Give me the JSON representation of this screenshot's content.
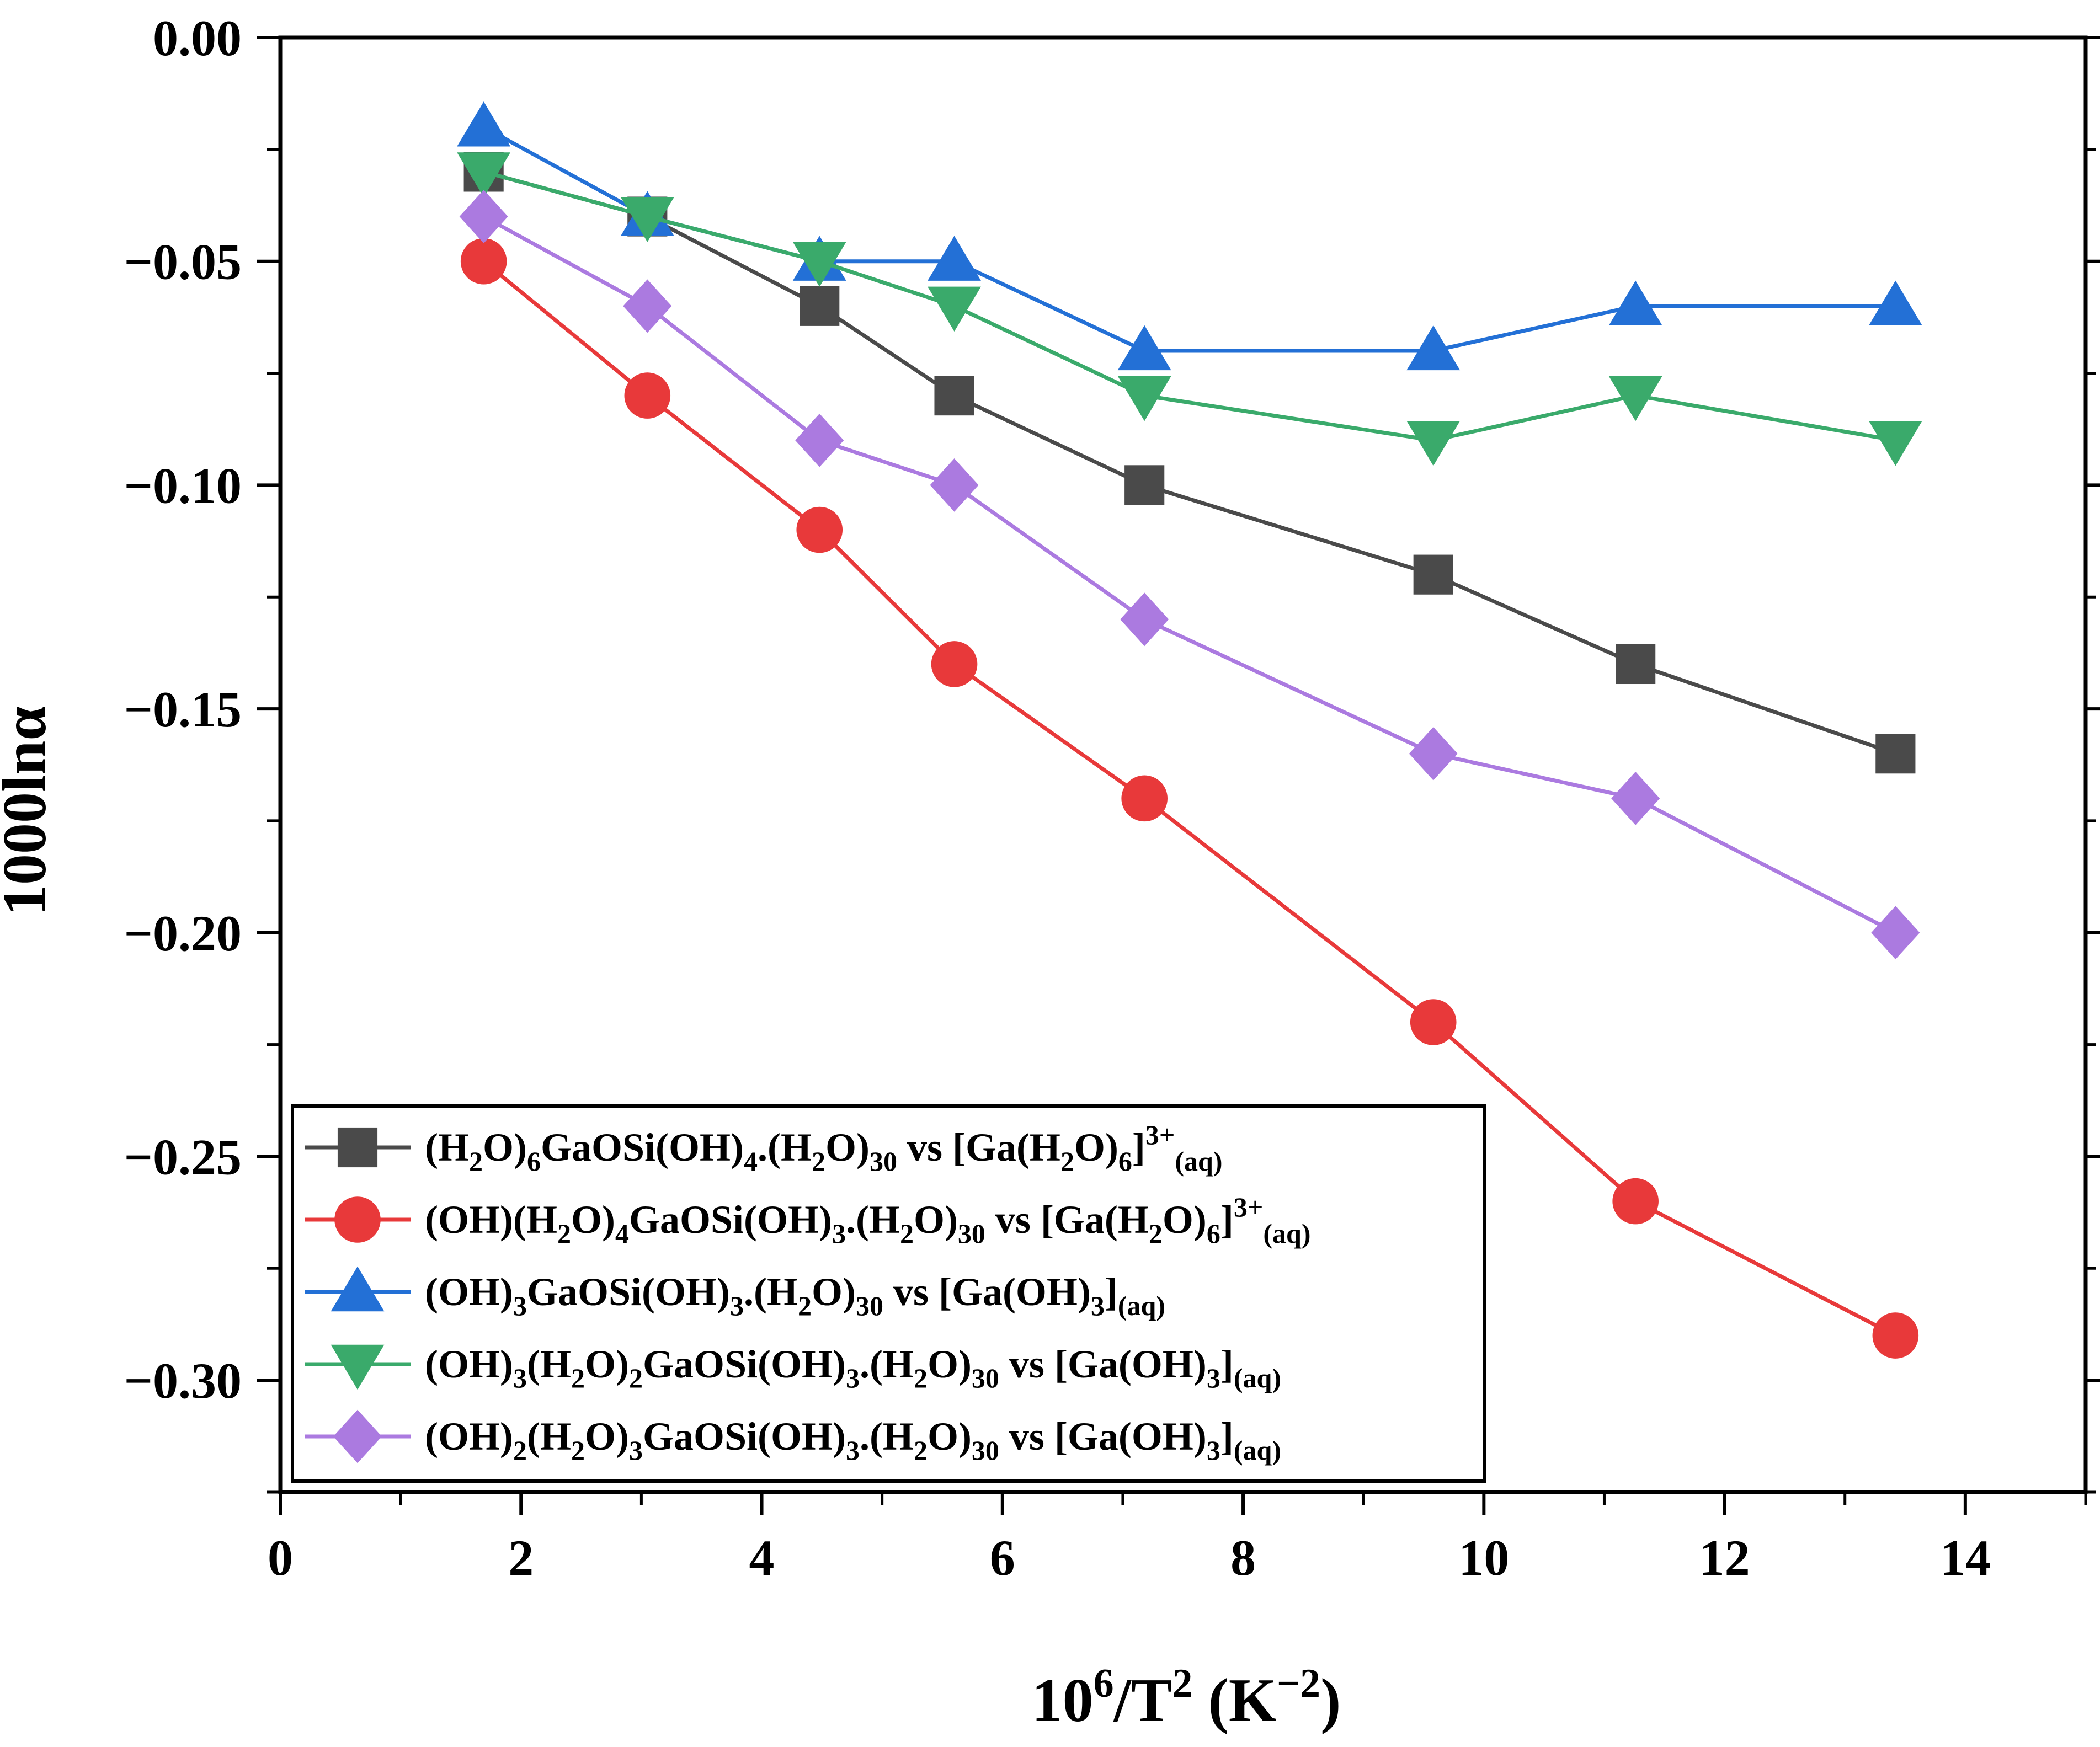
{
  "chart_data": {
    "type": "line",
    "xlabel": {
      "base": "10",
      "sup1": "6",
      "mid": "/T",
      "sup2": "2",
      "unit_open": " (K",
      "sup3": "−2",
      "unit_close": ")"
    },
    "ylabel": "1000lnα",
    "xlim": [
      0,
      15
    ],
    "ylim": [
      -0.325,
      0
    ],
    "xticks": [
      0,
      2,
      4,
      6,
      8,
      10,
      12,
      14
    ],
    "xtick_labels": [
      "0",
      "2",
      "4",
      "6",
      "8",
      "10",
      "12",
      "14"
    ],
    "yticks": [
      0,
      -0.05,
      -0.1,
      -0.15,
      -0.2,
      -0.25,
      -0.3
    ],
    "ytick_labels": [
      "0.00",
      "−0.05",
      "−0.10",
      "−0.15",
      "−0.20",
      "−0.25",
      "−0.30"
    ],
    "legend_position": "bottom-left",
    "x": [
      1.69,
      3.05,
      4.48,
      5.6,
      7.18,
      9.58,
      11.26,
      13.42
    ],
    "series": [
      {
        "name": "(H2O)6GaOSi(OH)4.(H2O)30 vs [Ga(H2O)6]3+(aq)",
        "legend_parts": [
          [
            "n",
            "(H"
          ],
          [
            "sub",
            "2"
          ],
          [
            "n",
            "O)"
          ],
          [
            "sub",
            "6"
          ],
          [
            "n",
            "GaOSi(OH)"
          ],
          [
            "sub",
            "4"
          ],
          [
            "n",
            ".(H"
          ],
          [
            "sub",
            "2"
          ],
          [
            "n",
            "O)"
          ],
          [
            "sub",
            "30"
          ],
          [
            "n",
            " vs [Ga(H"
          ],
          [
            "sub",
            "2"
          ],
          [
            "n",
            "O)"
          ],
          [
            "sub",
            "6"
          ],
          [
            "n",
            "]"
          ],
          [
            "sup",
            "3+"
          ],
          [
            "sub",
            "(aq)"
          ]
        ],
        "color": "#4a4a4a",
        "marker": "square",
        "values": [
          -0.03,
          -0.04,
          -0.06,
          -0.08,
          -0.1,
          -0.12,
          -0.14,
          -0.16
        ]
      },
      {
        "name": "(OH)(H2O)4GaOSi(OH)3.(H2O)30 vs [Ga(H2O)6]3+(aq)",
        "legend_parts": [
          [
            "n",
            "(OH)(H"
          ],
          [
            "sub",
            "2"
          ],
          [
            "n",
            "O)"
          ],
          [
            "sub",
            "4"
          ],
          [
            "n",
            "GaOSi(OH)"
          ],
          [
            "sub",
            "3"
          ],
          [
            "n",
            ".(H"
          ],
          [
            "sub",
            "2"
          ],
          [
            "n",
            "O)"
          ],
          [
            "sub",
            "30"
          ],
          [
            "n",
            " vs [Ga(H"
          ],
          [
            "sub",
            "2"
          ],
          [
            "n",
            "O)"
          ],
          [
            "sub",
            "6"
          ],
          [
            "n",
            "]"
          ],
          [
            "sup",
            "3+"
          ],
          [
            "sub",
            "(aq)"
          ]
        ],
        "color": "#e8393a",
        "marker": "circle",
        "values": [
          -0.05,
          -0.08,
          -0.11,
          -0.14,
          -0.17,
          -0.22,
          -0.26,
          -0.29
        ]
      },
      {
        "name": "(OH)3GaOSi(OH)3.(H2O)30 vs [Ga(OH)3](aq)",
        "legend_parts": [
          [
            "n",
            "(OH)"
          ],
          [
            "sub",
            "3"
          ],
          [
            "n",
            "GaOSi(OH)"
          ],
          [
            "sub",
            "3"
          ],
          [
            "n",
            ".(H"
          ],
          [
            "sub",
            "2"
          ],
          [
            "n",
            "O)"
          ],
          [
            "sub",
            "30"
          ],
          [
            "n",
            " vs [Ga(OH)"
          ],
          [
            "sub",
            "3"
          ],
          [
            "n",
            "]"
          ],
          [
            "sub",
            "(aq)"
          ]
        ],
        "color": "#2370d6",
        "marker": "triangle-up",
        "values": [
          -0.02,
          -0.04,
          -0.05,
          -0.05,
          -0.07,
          -0.07,
          -0.06,
          -0.06
        ]
      },
      {
        "name": "(OH)3(H2O)2GaOSi(OH)3.(H2O)30 vs [Ga(OH)3](aq)",
        "legend_parts": [
          [
            "n",
            "(OH)"
          ],
          [
            "sub",
            "3"
          ],
          [
            "n",
            "(H"
          ],
          [
            "sub",
            "2"
          ],
          [
            "n",
            "O)"
          ],
          [
            "sub",
            "2"
          ],
          [
            "n",
            "GaOSi(OH)"
          ],
          [
            "sub",
            "3"
          ],
          [
            "n",
            ".(H"
          ],
          [
            "sub",
            "2"
          ],
          [
            "n",
            "O)"
          ],
          [
            "sub",
            "30"
          ],
          [
            "n",
            " vs [Ga(OH)"
          ],
          [
            "sub",
            "3"
          ],
          [
            "n",
            "]"
          ],
          [
            "sub",
            "(aq)"
          ]
        ],
        "color": "#3aaa6b",
        "marker": "triangle-down",
        "values": [
          -0.03,
          -0.04,
          -0.05,
          -0.06,
          -0.08,
          -0.09,
          -0.08,
          -0.09
        ]
      },
      {
        "name": "(OH)2(H2O)3GaOSi(OH)3.(H2O)30 vs [Ga(OH)3](aq)",
        "legend_parts": [
          [
            "n",
            "(OH)"
          ],
          [
            "sub",
            "2"
          ],
          [
            "n",
            "(H"
          ],
          [
            "sub",
            "2"
          ],
          [
            "n",
            "O)"
          ],
          [
            "sub",
            "3"
          ],
          [
            "n",
            "GaOSi(OH)"
          ],
          [
            "sub",
            "3"
          ],
          [
            "n",
            ".(H"
          ],
          [
            "sub",
            "2"
          ],
          [
            "n",
            "O)"
          ],
          [
            "sub",
            "30"
          ],
          [
            "n",
            " vs [Ga(OH)"
          ],
          [
            "sub",
            "3"
          ],
          [
            "n",
            "]"
          ],
          [
            "sub",
            "(aq)"
          ]
        ],
        "color": "#ab7ae0",
        "marker": "diamond",
        "values": [
          -0.04,
          -0.06,
          -0.09,
          -0.1,
          -0.13,
          -0.16,
          -0.17,
          -0.2
        ]
      }
    ]
  }
}
